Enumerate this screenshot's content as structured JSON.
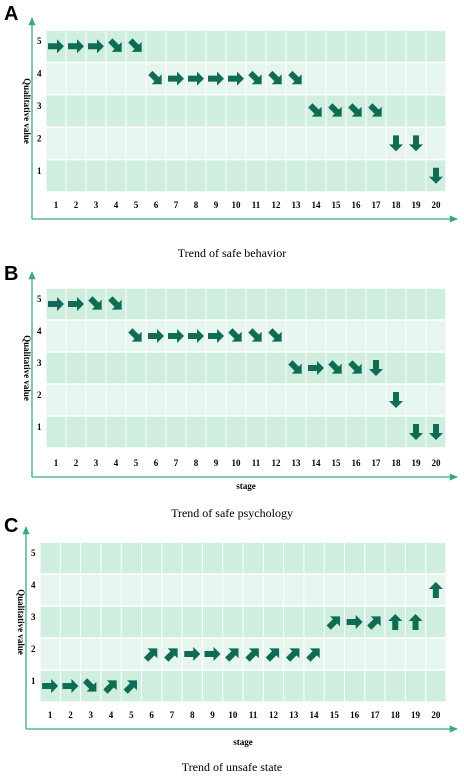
{
  "palette": {
    "band_dark": "#cfeedd",
    "band_light": "#e6f6ee",
    "axis": "#3aa889",
    "grid": "#ffffff",
    "arrow": "#0e6b55",
    "text": "#000000"
  },
  "chart_data": [
    {
      "panel": "A",
      "type": "scatter",
      "marker": "direction-arrow",
      "title": "Trend of safe behavior",
      "xlabel": "",
      "ylabel": "Qualitative value",
      "x": [
        1,
        2,
        3,
        4,
        5,
        6,
        7,
        8,
        9,
        10,
        11,
        12,
        13,
        14,
        15,
        16,
        17,
        18,
        19,
        20
      ],
      "y": [
        5,
        5,
        5,
        5,
        5,
        4,
        4,
        4,
        4,
        4,
        4,
        4,
        4,
        3,
        3,
        3,
        3,
        2,
        2,
        1
      ],
      "directions": [
        "right",
        "right",
        "right",
        "down-right",
        "down-right",
        "down-right",
        "right",
        "right",
        "right",
        "right",
        "down-right",
        "down-right",
        "down-right",
        "down-right",
        "down-right",
        "down-right",
        "down-right",
        "down",
        "down",
        "down"
      ],
      "ylim": [
        1,
        5
      ],
      "xticks": [
        "1",
        "2",
        "3",
        "4",
        "5",
        "6",
        "7",
        "8",
        "9",
        "10",
        "11",
        "12",
        "13",
        "14",
        "15",
        "16",
        "17",
        "18",
        "19",
        "20"
      ],
      "yticks": [
        "1",
        "2",
        "3",
        "4",
        "5"
      ]
    },
    {
      "panel": "B",
      "type": "scatter",
      "marker": "direction-arrow",
      "title": "Trend of safe psychology",
      "xlabel": "stage",
      "ylabel": "Qualitative value",
      "x": [
        1,
        2,
        3,
        4,
        5,
        6,
        7,
        8,
        9,
        10,
        11,
        12,
        13,
        14,
        15,
        16,
        17,
        18,
        19,
        20
      ],
      "y": [
        5,
        5,
        5,
        5,
        4,
        4,
        4,
        4,
        4,
        4,
        4,
        4,
        3,
        3,
        3,
        3,
        3,
        2,
        1,
        1
      ],
      "directions": [
        "right",
        "right",
        "down-right",
        "down-right",
        "down-right",
        "right",
        "right",
        "right",
        "right",
        "down-right",
        "down-right",
        "down-right",
        "down-right",
        "right",
        "down-right",
        "down-right",
        "down",
        "down",
        "down",
        "down"
      ],
      "ylim": [
        1,
        5
      ],
      "xticks": [
        "1",
        "2",
        "3",
        "4",
        "5",
        "6",
        "7",
        "8",
        "9",
        "10",
        "11",
        "12",
        "13",
        "14",
        "15",
        "16",
        "17",
        "18",
        "19",
        "20"
      ],
      "yticks": [
        "1",
        "2",
        "3",
        "4",
        "5"
      ]
    },
    {
      "panel": "C",
      "type": "scatter",
      "marker": "direction-arrow",
      "title": "Trend of unsafe state",
      "xlabel": "stage",
      "ylabel": "Qualitative value",
      "x": [
        1,
        2,
        3,
        4,
        5,
        6,
        7,
        8,
        9,
        10,
        11,
        12,
        13,
        14,
        15,
        16,
        17,
        18,
        19,
        20
      ],
      "y": [
        1,
        1,
        1,
        1,
        1,
        2,
        2,
        2,
        2,
        2,
        2,
        2,
        2,
        2,
        3,
        3,
        3,
        3,
        3,
        4
      ],
      "directions": [
        "right",
        "right",
        "down-right",
        "up-right",
        "up-right",
        "up-right",
        "up-right",
        "right",
        "right",
        "up-right",
        "up-right",
        "up-right",
        "up-right",
        "up-right",
        "up-right",
        "right",
        "up-right",
        "up",
        "up",
        "up"
      ],
      "ylim": [
        1,
        5
      ],
      "xticks": [
        "1",
        "2",
        "3",
        "4",
        "5",
        "6",
        "7",
        "8",
        "9",
        "10",
        "11",
        "12",
        "13",
        "14",
        "15",
        "16",
        "17",
        "18",
        "19",
        "20"
      ],
      "yticks": [
        "1",
        "2",
        "3",
        "4",
        "5"
      ]
    }
  ]
}
